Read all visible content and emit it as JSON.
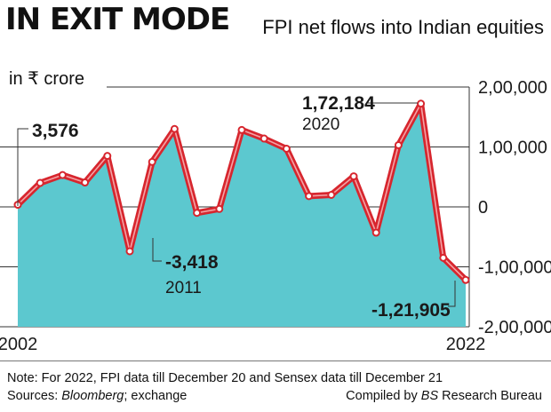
{
  "headline": "IN EXIT MODE",
  "subtitle": "FPI net flows into Indian equities",
  "unit_label": "in ₹ crore",
  "note": "Note: For 2022, FPI data till December 20 and Sensex data till December 21",
  "sources_prefix": "Sources: ",
  "sources_italic": "Bloomberg",
  "sources_suffix": "; exchange",
  "credit_prefix": "Compiled by ",
  "credit_italic": "BS",
  "credit_suffix": " Research Bureau",
  "colors": {
    "area": "#5cc8cf",
    "line": "#d7262e",
    "line_inner": "#f4a3a6",
    "grid": "#333333",
    "text": "#1a1a1a"
  },
  "chart_data": {
    "type": "area",
    "x": [
      2002,
      2003,
      2004,
      2005,
      2006,
      2007,
      2008,
      2009,
      2010,
      2011,
      2012,
      2013,
      2014,
      2015,
      2016,
      2017,
      2018,
      2019,
      2020,
      2021,
      2022
    ],
    "values": [
      3576,
      39960,
      53140,
      40720,
      85000,
      -74000,
      75000,
      130000,
      -10000,
      -3418,
      128300,
      114000,
      97000,
      18000,
      20000,
      51000,
      -43000,
      103000,
      172184,
      -85000,
      -121905
    ],
    "ylim": [
      -200000,
      200000
    ],
    "yticks": [
      {
        "value": 200000,
        "label": "2,00,000"
      },
      {
        "value": 100000,
        "label": "1,00,000"
      },
      {
        "value": 0,
        "label": "0"
      },
      {
        "value": -100000,
        "label": "-1,00,000"
      },
      {
        "value": -200000,
        "label": "-2,00,000"
      }
    ],
    "xtick_labels": [
      {
        "year": 2002,
        "label": "2002"
      },
      {
        "year": 2022,
        "label": "2022"
      }
    ],
    "annotations": [
      {
        "year": 2002,
        "value_text": "3,576",
        "year_text": ""
      },
      {
        "year": 2011,
        "value_text": "-3,418",
        "year_text": "2011"
      },
      {
        "year": 2020,
        "value_text": "1,72,184",
        "year_text": "2020"
      },
      {
        "year": 2022,
        "value_text": "-1,21,905",
        "year_text": ""
      }
    ]
  }
}
